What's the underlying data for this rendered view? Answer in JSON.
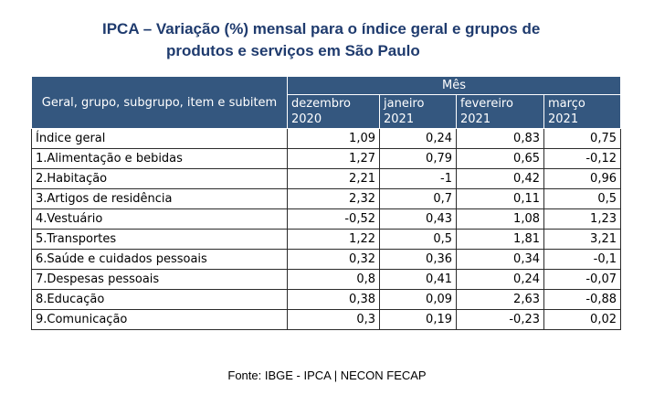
{
  "title": {
    "line1": "IPCA – Variação (%) mensal para o índice geral e grupos de",
    "line2": "produtos e serviços em São Paulo"
  },
  "table": {
    "row_header": "Geral, grupo, subgrupo, item e subitem",
    "group_header": "Mês",
    "columns": [
      {
        "month": "dezembro",
        "year": "2020"
      },
      {
        "month": "janeiro",
        "year": "2021"
      },
      {
        "month": "fevereiro",
        "year": "2021"
      },
      {
        "month": "março",
        "year": "2021"
      }
    ],
    "rows": [
      {
        "label": "Índice geral",
        "values": [
          "1,09",
          "0,24",
          "0,83",
          "0,75"
        ]
      },
      {
        "label": "1.Alimentação e bebidas",
        "values": [
          "1,27",
          "0,79",
          "0,65",
          "-0,12"
        ]
      },
      {
        "label": "2.Habitação",
        "values": [
          "2,21",
          "-1",
          "0,42",
          "0,96"
        ]
      },
      {
        "label": "3.Artigos de residência",
        "values": [
          "2,32",
          "0,7",
          "0,11",
          "0,5"
        ]
      },
      {
        "label": "4.Vestuário",
        "values": [
          "-0,52",
          "0,43",
          "1,08",
          "1,23"
        ]
      },
      {
        "label": "5.Transportes",
        "values": [
          "1,22",
          "0,5",
          "1,81",
          "3,21"
        ]
      },
      {
        "label": "6.Saúde e cuidados pessoais",
        "values": [
          "0,32",
          "0,36",
          "0,34",
          "-0,1"
        ]
      },
      {
        "label": "7.Despesas pessoais",
        "values": [
          "0,8",
          "0,41",
          "0,24",
          "-0,07"
        ]
      },
      {
        "label": "8.Educação",
        "values": [
          "0,38",
          "0,09",
          "2,63",
          "-0,88"
        ]
      },
      {
        "label": "9.Comunicação",
        "values": [
          "0,3",
          "0,19",
          "-0,23",
          "0,02"
        ]
      }
    ]
  },
  "footer": "Fonte: IBGE - IPCA | NECON FECAP",
  "colors": {
    "title": "#1f3b6e",
    "header_bg": "#34577f",
    "header_text": "#ffffff"
  }
}
